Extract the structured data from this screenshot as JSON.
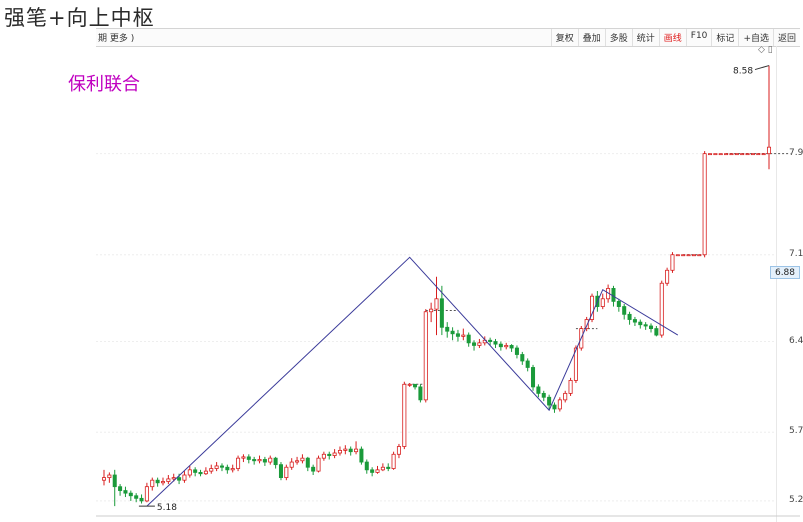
{
  "title": "强笔+向上中枢",
  "toolbar": {
    "period_text": "期  更多 )",
    "buttons": [
      {
        "label": "复权",
        "active": false
      },
      {
        "label": "叠加",
        "active": false
      },
      {
        "label": "多股",
        "active": false
      },
      {
        "label": "统计",
        "active": false
      },
      {
        "label": "画线",
        "active": true
      },
      {
        "label": "F10",
        "active": false
      },
      {
        "label": "标记",
        "active": false
      },
      {
        "label": "+自选",
        "active": false
      },
      {
        "label": "返回",
        "active": false
      }
    ]
  },
  "stock_name": "保利联合",
  "mini_icons": "◇ ▯",
  "current_price": "6.88",
  "annotations": {
    "low": "5.18",
    "high": "8.58"
  },
  "chart_data": {
    "type": "candlestick",
    "y_ticks": [
      "7.9",
      "7.1",
      "6.4",
      "5.7",
      "5.2"
    ],
    "price_range": [
      5.15,
      8.7
    ],
    "colors": {
      "up": "#d81e1e",
      "down": "#1a9a3a",
      "pen": "#3b3b9a",
      "dash": "#555555"
    },
    "candles": [
      [
        5.38,
        5.4,
        5.46,
        5.34
      ],
      [
        5.4,
        5.42,
        5.44,
        5.36
      ],
      [
        5.42,
        5.33,
        5.46,
        5.18
      ],
      [
        5.33,
        5.3,
        5.35,
        5.26
      ],
      [
        5.3,
        5.28,
        5.33,
        5.25
      ],
      [
        5.28,
        5.26,
        5.3,
        5.22
      ],
      [
        5.26,
        5.24,
        5.28,
        5.21
      ],
      [
        5.24,
        5.22,
        5.27,
        5.2
      ],
      [
        5.22,
        5.33,
        5.36,
        5.21
      ],
      [
        5.33,
        5.38,
        5.4,
        5.3
      ],
      [
        5.38,
        5.36,
        5.4,
        5.33
      ],
      [
        5.36,
        5.37,
        5.4,
        5.34
      ],
      [
        5.37,
        5.39,
        5.42,
        5.35
      ],
      [
        5.39,
        5.4,
        5.43,
        5.37
      ],
      [
        5.4,
        5.38,
        5.43,
        5.35
      ],
      [
        5.38,
        5.42,
        5.45,
        5.36
      ],
      [
        5.42,
        5.46,
        5.49,
        5.4
      ],
      [
        5.46,
        5.44,
        5.48,
        5.41
      ],
      [
        5.44,
        5.43,
        5.46,
        5.41
      ],
      [
        5.43,
        5.45,
        5.48,
        5.42
      ],
      [
        5.45,
        5.47,
        5.5,
        5.43
      ],
      [
        5.47,
        5.49,
        5.52,
        5.45
      ],
      [
        5.49,
        5.48,
        5.51,
        5.45
      ],
      [
        5.48,
        5.46,
        5.5,
        5.43
      ],
      [
        5.46,
        5.47,
        5.5,
        5.44
      ],
      [
        5.47,
        5.55,
        5.57,
        5.45
      ],
      [
        5.55,
        5.56,
        5.58,
        5.52
      ],
      [
        5.56,
        5.54,
        5.58,
        5.51
      ],
      [
        5.54,
        5.53,
        5.56,
        5.5
      ],
      [
        5.53,
        5.54,
        5.57,
        5.51
      ],
      [
        5.54,
        5.52,
        5.56,
        5.49
      ],
      [
        5.52,
        5.55,
        5.57,
        5.5
      ],
      [
        5.55,
        5.5,
        5.56,
        5.47
      ],
      [
        5.5,
        5.4,
        5.52,
        5.38
      ],
      [
        5.4,
        5.48,
        5.5,
        5.38
      ],
      [
        5.48,
        5.52,
        5.55,
        5.46
      ],
      [
        5.52,
        5.53,
        5.56,
        5.5
      ],
      [
        5.53,
        5.55,
        5.58,
        5.51
      ],
      [
        5.55,
        5.48,
        5.56,
        5.45
      ],
      [
        5.48,
        5.45,
        5.5,
        5.42
      ],
      [
        5.45,
        5.55,
        5.57,
        5.44
      ],
      [
        5.55,
        5.58,
        5.6,
        5.53
      ],
      [
        5.58,
        5.57,
        5.6,
        5.54
      ],
      [
        5.57,
        5.59,
        5.62,
        5.55
      ],
      [
        5.59,
        5.61,
        5.64,
        5.57
      ],
      [
        5.61,
        5.62,
        5.65,
        5.58
      ],
      [
        5.62,
        5.6,
        5.64,
        5.57
      ],
      [
        5.6,
        5.62,
        5.68,
        5.58
      ],
      [
        5.62,
        5.52,
        5.64,
        5.5
      ],
      [
        5.52,
        5.46,
        5.54,
        5.43
      ],
      [
        5.46,
        5.44,
        5.48,
        5.41
      ],
      [
        5.44,
        5.46,
        5.49,
        5.43
      ],
      [
        5.46,
        5.48,
        5.51,
        5.45
      ],
      [
        5.48,
        5.47,
        5.51,
        5.45
      ],
      [
        5.47,
        5.58,
        5.6,
        5.46
      ],
      [
        5.58,
        5.64,
        5.66,
        5.55
      ],
      [
        5.64,
        6.12,
        6.14,
        5.62
      ],
      [
        6.12,
        6.12,
        6.13,
        6.1
      ],
      [
        6.12,
        6.1,
        6.12,
        6.08
      ],
      [
        6.1,
        6.0,
        6.12,
        5.98
      ],
      [
        6.0,
        6.68,
        6.7,
        5.98
      ],
      [
        6.68,
        6.7,
        6.75,
        6.6
      ],
      [
        6.7,
        6.78,
        6.95,
        6.5
      ],
      [
        6.78,
        6.56,
        6.88,
        6.5
      ],
      [
        6.56,
        6.53,
        6.6,
        6.48
      ],
      [
        6.53,
        6.51,
        6.56,
        6.46
      ],
      [
        6.51,
        6.49,
        6.54,
        6.45
      ],
      [
        6.49,
        6.5,
        6.55,
        6.46
      ],
      [
        6.5,
        6.44,
        6.52,
        6.41
      ],
      [
        6.44,
        6.42,
        6.46,
        6.38
      ],
      [
        6.42,
        6.44,
        6.47,
        6.4
      ],
      [
        6.44,
        6.46,
        6.49,
        6.42
      ],
      [
        6.46,
        6.45,
        6.48,
        6.42
      ],
      [
        6.45,
        6.43,
        6.47,
        6.4
      ],
      [
        6.43,
        6.41,
        6.45,
        6.38
      ],
      [
        6.41,
        6.42,
        6.44,
        6.39
      ],
      [
        6.42,
        6.4,
        6.43,
        6.37
      ],
      [
        6.4,
        6.35,
        6.42,
        6.32
      ],
      [
        6.35,
        6.3,
        6.37,
        6.27
      ],
      [
        6.3,
        6.25,
        6.32,
        6.22
      ],
      [
        6.25,
        6.1,
        6.27,
        6.07
      ],
      [
        6.1,
        6.05,
        6.12,
        6.02
      ],
      [
        6.05,
        6.02,
        6.07,
        5.99
      ],
      [
        6.02,
        5.96,
        6.04,
        5.92
      ],
      [
        5.96,
        5.93,
        5.98,
        5.9
      ],
      [
        5.93,
        6.0,
        6.02,
        5.91
      ],
      [
        6.0,
        6.05,
        6.07,
        5.98
      ],
      [
        6.05,
        6.15,
        6.17,
        6.03
      ],
      [
        6.15,
        6.4,
        6.42,
        6.13
      ],
      [
        6.4,
        6.55,
        6.57,
        6.38
      ],
      [
        6.55,
        6.62,
        6.64,
        6.53
      ],
      [
        6.62,
        6.8,
        6.82,
        6.6
      ],
      [
        6.8,
        6.72,
        6.84,
        6.68
      ],
      [
        6.72,
        6.78,
        6.82,
        6.7
      ],
      [
        6.78,
        6.86,
        6.89,
        6.75
      ],
      [
        6.86,
        6.76,
        6.88,
        6.72
      ],
      [
        6.76,
        6.72,
        6.78,
        6.68
      ],
      [
        6.72,
        6.66,
        6.74,
        6.62
      ],
      [
        6.66,
        6.62,
        6.68,
        6.58
      ],
      [
        6.62,
        6.6,
        6.64,
        6.57
      ],
      [
        6.6,
        6.58,
        6.62,
        6.55
      ],
      [
        6.58,
        6.57,
        6.6,
        6.54
      ],
      [
        6.57,
        6.55,
        6.59,
        6.52
      ],
      [
        6.55,
        6.5,
        6.57,
        6.49
      ],
      [
        6.5,
        6.9,
        6.92,
        6.48
      ],
      [
        6.9,
        7.0,
        7.02,
        6.88
      ],
      [
        7.0,
        7.12,
        7.14,
        6.98
      ],
      [
        7.12,
        7.12,
        7.12,
        7.12
      ],
      [
        7.12,
        7.12,
        7.12,
        7.12
      ],
      [
        7.12,
        7.12,
        7.12,
        7.12
      ],
      [
        7.12,
        7.12,
        7.12,
        7.12
      ],
      [
        7.12,
        7.12,
        7.12,
        7.12
      ],
      [
        7.12,
        7.9,
        7.92,
        7.1
      ],
      [
        7.9,
        7.9,
        7.9,
        7.9
      ],
      [
        7.9,
        7.9,
        7.9,
        7.9
      ],
      [
        7.9,
        7.9,
        7.9,
        7.9
      ],
      [
        7.9,
        7.9,
        7.9,
        7.9
      ],
      [
        7.9,
        7.9,
        7.9,
        7.9
      ],
      [
        7.9,
        7.9,
        7.9,
        7.9
      ],
      [
        7.9,
        7.9,
        7.9,
        7.9
      ],
      [
        7.9,
        7.9,
        7.9,
        7.9
      ],
      [
        7.9,
        7.9,
        7.9,
        7.9
      ],
      [
        7.9,
        7.9,
        7.9,
        7.9
      ],
      [
        7.9,
        7.9,
        7.9,
        7.9
      ],
      [
        7.9,
        7.95,
        8.58,
        7.78
      ]
    ],
    "pen_points": [
      [
        8,
        5.18
      ],
      [
        57,
        7.1
      ],
      [
        83,
        5.92
      ],
      [
        93,
        6.85
      ],
      [
        107,
        6.5
      ]
    ],
    "dashed_segments": [
      [
        56,
        60,
        6.12
      ],
      [
        60,
        66,
        6.69
      ],
      [
        88,
        92,
        6.55
      ],
      [
        108,
        112,
        7.12
      ],
      [
        116,
        128,
        7.9
      ]
    ]
  }
}
